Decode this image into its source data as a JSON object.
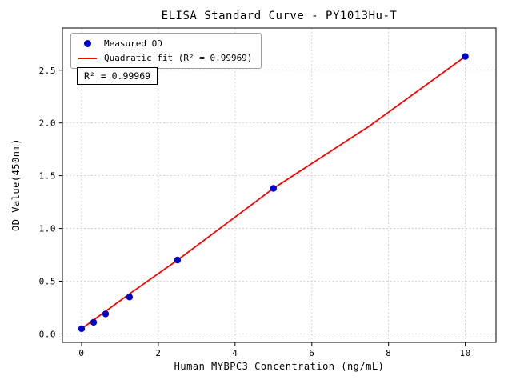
{
  "chart_data": {
    "type": "scatter",
    "title": "ELISA Standard Curve - PY1013Hu-T",
    "xlabel": "Human MYBPC3 Concentration (ng/mL)",
    "ylabel": "OD Value(450nm)",
    "xlim": [
      -0.5,
      10.8
    ],
    "ylim": [
      -0.08,
      2.9
    ],
    "xticks": [
      0,
      2,
      4,
      6,
      8,
      10
    ],
    "xtick_labels": [
      "0",
      "2",
      "4",
      "6",
      "8",
      "10"
    ],
    "yticks": [
      0.0,
      0.5,
      1.0,
      1.5,
      2.0,
      2.5
    ],
    "ytick_labels": [
      "0.0",
      "0.5",
      "1.0",
      "1.5",
      "2.0",
      "2.5"
    ],
    "grid": true,
    "legend_position": "upper-left",
    "annotation": "R² = 0.99969",
    "series": [
      {
        "name": "Measured OD",
        "type": "scatter",
        "color": "#0000cd",
        "x": [
          0,
          0.3125,
          0.625,
          1.25,
          2.5,
          5,
          10
        ],
        "y": [
          0.05,
          0.11,
          0.19,
          0.35,
          0.7,
          1.38,
          2.63
        ]
      },
      {
        "name": "Quadratic fit (R² = 0.99969)",
        "type": "line",
        "color": "#ff0000",
        "fit_line": {
          "x": [
            0,
            1.25,
            2.5,
            5,
            7.5,
            10
          ],
          "y": [
            0.05,
            0.38,
            0.7,
            1.38,
            1.97,
            2.63
          ]
        }
      }
    ]
  }
}
